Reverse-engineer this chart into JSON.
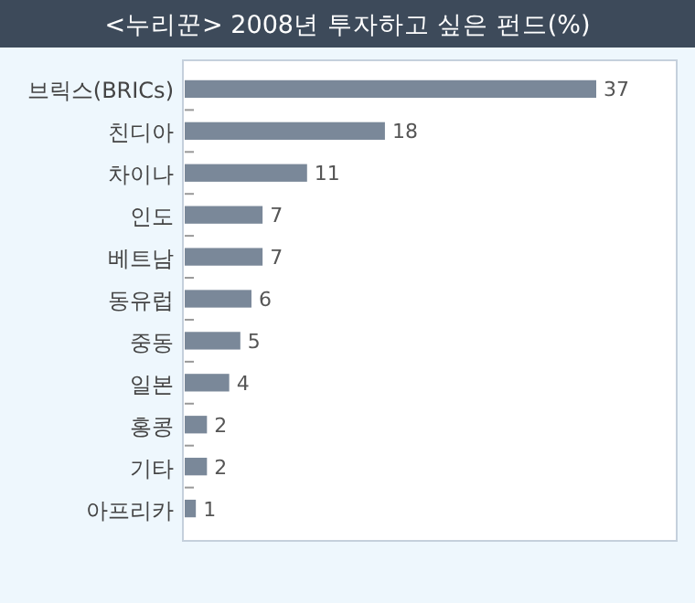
{
  "chart_data": {
    "type": "bar",
    "orientation": "horizontal",
    "title": "<누리꾼> 2008년 투자하고 싶은 펀드(%)",
    "categories": [
      "브릭스(BRICs)",
      "친디아",
      "차이나",
      "인도",
      "베트남",
      "동유럽",
      "중동",
      "일본",
      "홍콩",
      "기타",
      "아프리카"
    ],
    "values": [
      37,
      18,
      11,
      7,
      7,
      6,
      5,
      4,
      2,
      2,
      1
    ],
    "color": "#7a8899",
    "data_labels": true
  }
}
